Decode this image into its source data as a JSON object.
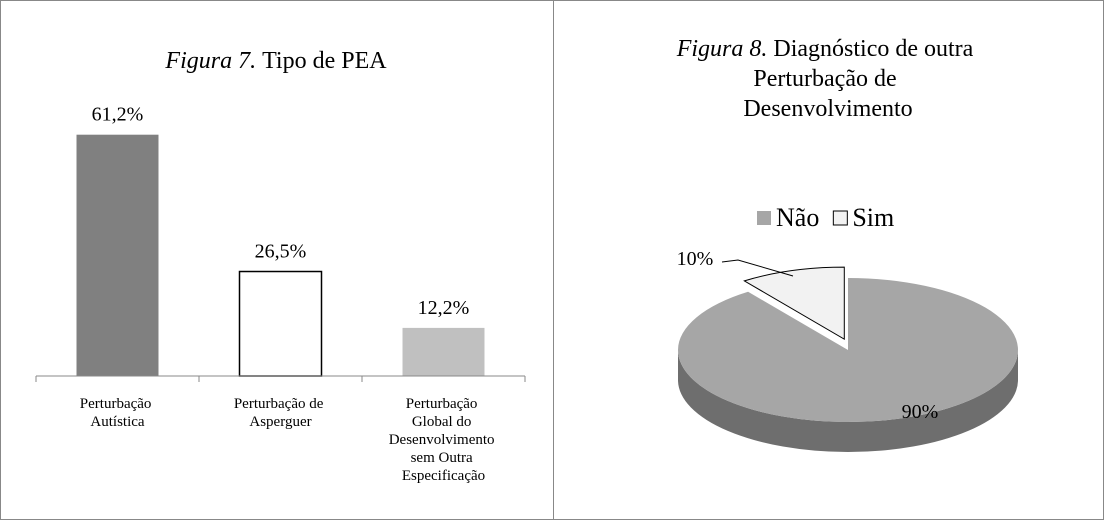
{
  "chart_data": [
    {
      "type": "bar",
      "label": "Figura 7.",
      "title": "Tipo de PEA",
      "categories": [
        "Perturbação Autística",
        "Perturbação de Asperguer",
        "Perturbação Global do Desenvolvimento sem Outra Especificação"
      ],
      "values": [
        61.2,
        26.5,
        12.2
      ],
      "value_labels": [
        "61,2%",
        "26,5%",
        "12,2%"
      ],
      "colors": [
        "#808080",
        "#ffffff",
        "#c0c0c0"
      ],
      "ylim": [
        0,
        70
      ]
    },
    {
      "type": "pie",
      "label": "Figura 8.",
      "title": "Diagnóstico de outra Perturbação de Desenvolvimento",
      "categories": [
        "Não",
        "Sim"
      ],
      "values": [
        90,
        10
      ],
      "value_labels": [
        "90%",
        "10%"
      ],
      "colors": [
        "#a6a6a6",
        "#f2f2f2"
      ],
      "legend": "top"
    }
  ]
}
